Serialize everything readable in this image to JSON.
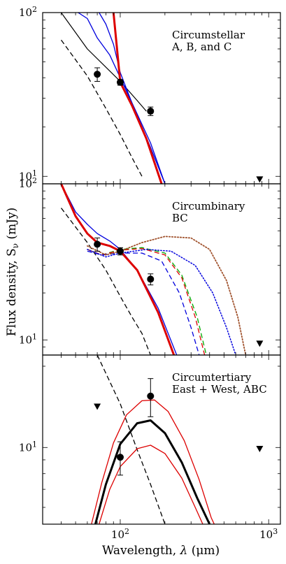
{
  "chart_data": [
    {
      "type": "line",
      "panel": "top",
      "annotation": [
        "Circumstellar",
        "A, B, and C"
      ],
      "x_scale": "log",
      "y_scale": "log",
      "xlim": [
        30,
        1200
      ],
      "ylim": [
        9,
        100
      ],
      "y_tick_labels": [
        {
          "value": 100,
          "base": "10",
          "exp": "2"
        },
        {
          "value": 10,
          "base": "10",
          "exp": "1"
        }
      ],
      "observations": [
        {
          "x": 70,
          "y": 42,
          "yerr": [
            4,
            4
          ]
        },
        {
          "x": 100,
          "y": 37.5,
          "yerr": [
            1.5,
            1.5
          ]
        },
        {
          "x": 160,
          "y": 25,
          "yerr": [
            1.5,
            1.5
          ]
        }
      ],
      "upper_limits": [
        {
          "x": 870,
          "y": 9.6
        }
      ],
      "series": [
        {
          "color": "#000000",
          "dash": "solid",
          "width": 1.2,
          "points": [
            [
              40,
              100
            ],
            [
              60,
              60
            ],
            [
              100,
              38
            ],
            [
              130,
              29
            ],
            [
              150,
              25
            ]
          ]
        },
        {
          "color": "#000000",
          "dash": "dashed",
          "width": 1.3,
          "points": [
            [
              40,
              68
            ],
            [
              60,
              41
            ],
            [
              80,
              26
            ],
            [
              100,
              18
            ],
            [
              120,
              13
            ],
            [
              140,
              10
            ]
          ]
        },
        {
          "color": "#0000dd",
          "dash": "solid",
          "width": 1.3,
          "points": [
            [
              52,
              100
            ],
            [
              60,
              92
            ],
            [
              70,
              70
            ],
            [
              85,
              55
            ],
            [
              100,
              40
            ],
            [
              130,
              24
            ],
            [
              160,
              16
            ],
            [
              200,
              9
            ]
          ]
        },
        {
          "color": "#0000dd",
          "dash": "solid",
          "width": 1.3,
          "points": [
            [
              72,
              100
            ],
            [
              80,
              85
            ],
            [
              90,
              64
            ],
            [
              100,
              43
            ],
            [
              120,
              28
            ],
            [
              160,
              15
            ],
            [
              200,
              9
            ]
          ]
        },
        {
          "color": "#dd0000",
          "dash": "solid",
          "width": 3,
          "points": [
            [
              90,
              100
            ],
            [
              100,
              37.5
            ],
            [
              120,
              27
            ],
            [
              150,
              17
            ],
            [
              190,
              9
            ]
          ]
        }
      ]
    },
    {
      "type": "line",
      "panel": "middle",
      "annotation": [
        "Circumbinary",
        "BC"
      ],
      "x_scale": "log",
      "y_scale": "log",
      "xlim": [
        30,
        1200
      ],
      "ylim": [
        8,
        100
      ],
      "y_tick_labels": [
        {
          "value": 100,
          "base": "10",
          "exp": "2"
        },
        {
          "value": 10,
          "base": "10",
          "exp": "1"
        }
      ],
      "y_axis_label": "Flux density, S_ν (mJy)",
      "observations": [
        {
          "x": 70,
          "y": 41,
          "yerr": [
            4,
            4
          ]
        },
        {
          "x": 100,
          "y": 37,
          "yerr": [
            2,
            2
          ]
        },
        {
          "x": 160,
          "y": 24.5,
          "yerr": [
            2,
            2
          ]
        }
      ],
      "upper_limits": [
        {
          "x": 870,
          "y": 9.5
        }
      ],
      "series": [
        {
          "color": "#000000",
          "dash": "dashed",
          "width": 1.3,
          "points": [
            [
              40,
              70
            ],
            [
              60,
              42
            ],
            [
              80,
              28
            ],
            [
              100,
              19
            ],
            [
              120,
              14
            ],
            [
              140,
              11
            ],
            [
              160,
              8
            ]
          ]
        },
        {
          "color": "#0000dd",
          "dash": "solid",
          "width": 1.3,
          "points": [
            [
              40,
              100
            ],
            [
              50,
              66
            ],
            [
              60,
              55
            ],
            [
              70,
              48
            ],
            [
              85,
              43
            ],
            [
              100,
              38
            ],
            [
              130,
              28
            ],
            [
              180,
              16
            ],
            [
              240,
              8
            ]
          ]
        },
        {
          "color": "#dd0000",
          "dash": "solid",
          "width": 3,
          "points": [
            [
              40,
              100
            ],
            [
              50,
              62
            ],
            [
              60,
              48
            ],
            [
              70,
              42
            ],
            [
              85,
              40
            ],
            [
              100,
              37
            ],
            [
              130,
              28
            ],
            [
              180,
              15
            ],
            [
              230,
              8
            ]
          ]
        },
        {
          "color": "#00aa00",
          "dash": "dashed",
          "width": 1.3,
          "points": [
            [
              60,
              38
            ],
            [
              75,
              35
            ],
            [
              100,
              38
            ],
            [
              140,
              39
            ],
            [
              200,
              36
            ],
            [
              260,
              26
            ],
            [
              330,
              14
            ],
            [
              380,
              8
            ]
          ]
        },
        {
          "color": "#dd0000",
          "dash": "dashed",
          "width": 1.3,
          "points": [
            [
              60,
              38
            ],
            [
              75,
              35
            ],
            [
              100,
              37.5
            ],
            [
              140,
              38.5
            ],
            [
              200,
              35
            ],
            [
              260,
              25
            ],
            [
              320,
              14
            ],
            [
              370,
              8
            ]
          ]
        },
        {
          "color": "#0000dd",
          "dash": "dashed",
          "width": 1.3,
          "points": [
            [
              60,
              37
            ],
            [
              75,
              35
            ],
            [
              100,
              36
            ],
            [
              140,
              36
            ],
            [
              190,
              32
            ],
            [
              250,
              20
            ],
            [
              300,
              12
            ],
            [
              340,
              8
            ]
          ]
        },
        {
          "color": "#a0522d",
          "dash": "dotted",
          "width": 1.8,
          "points": [
            [
              60,
              40
            ],
            [
              80,
              35
            ],
            [
              100,
              37
            ],
            [
              140,
              42
            ],
            [
              200,
              46
            ],
            [
              300,
              45
            ],
            [
              400,
              38
            ],
            [
              520,
              24
            ],
            [
              620,
              14
            ],
            [
              700,
              8
            ]
          ]
        },
        {
          "color": "#0000dd",
          "dash": "dotted",
          "width": 1.5,
          "points": [
            [
              60,
              38
            ],
            [
              80,
              34
            ],
            [
              100,
              36
            ],
            [
              150,
              38
            ],
            [
              220,
              37
            ],
            [
              320,
              30
            ],
            [
              420,
              20
            ],
            [
              520,
              12
            ],
            [
              600,
              8
            ]
          ]
        }
      ]
    },
    {
      "type": "line",
      "panel": "bottom",
      "annotation": [
        "Circumtertiary",
        "East + West, ABC"
      ],
      "x_scale": "log",
      "y_scale": "log",
      "xlim": [
        30,
        1200
      ],
      "ylim": [
        5.2,
        22
      ],
      "x_tick_labels": [
        {
          "value": 100,
          "base": "10",
          "exp": "2"
        },
        {
          "value": 1000,
          "base": "10",
          "exp": "3"
        }
      ],
      "y_tick_labels": [
        {
          "value": 10,
          "base": "10",
          "exp": "1"
        }
      ],
      "x_axis_label": "Wavelength, λ (μm)",
      "observations": [
        {
          "x": 100,
          "y": 9.2,
          "yerr": [
            1.3,
            1.3
          ]
        },
        {
          "x": 160,
          "y": 15.5,
          "yerr": [
            2.5,
            2.5
          ]
        }
      ],
      "upper_limits": [
        {
          "x": 70,
          "y": 14.2
        },
        {
          "x": 870,
          "y": 9.9
        }
      ],
      "series": [
        {
          "color": "#000000",
          "dash": "dashed",
          "width": 1.3,
          "points": [
            [
              70,
              22
            ],
            [
              100,
              14.5
            ],
            [
              130,
              9.8
            ],
            [
              160,
              7.3
            ],
            [
              200,
              5.2
            ]
          ]
        },
        {
          "color": "#000000",
          "dash": "solid",
          "width": 3,
          "points": [
            [
              68,
              5.2
            ],
            [
              80,
              7.3
            ],
            [
              100,
              10.3
            ],
            [
              130,
              12.3
            ],
            [
              160,
              12.6
            ],
            [
              200,
              11.3
            ],
            [
              260,
              8.8
            ],
            [
              330,
              6.5
            ],
            [
              400,
              5.2
            ]
          ]
        },
        {
          "color": "#dd0000",
          "dash": "solid",
          "width": 1.3,
          "points": [
            [
              64,
              5.2
            ],
            [
              75,
              7.4
            ],
            [
              90,
              10.4
            ],
            [
              110,
              13.2
            ],
            [
              140,
              14.9
            ],
            [
              170,
              15.0
            ],
            [
              210,
              13.6
            ],
            [
              270,
              10.6
            ],
            [
              340,
              7.6
            ],
            [
              410,
              5.5
            ],
            [
              430,
              5.2
            ]
          ]
        },
        {
          "color": "#dd0000",
          "dash": "solid",
          "width": 1.3,
          "points": [
            [
              72,
              5.2
            ],
            [
              85,
              7.0
            ],
            [
              100,
              8.5
            ],
            [
              130,
              9.9
            ],
            [
              160,
              10.2
            ],
            [
              200,
              9.5
            ],
            [
              260,
              7.7
            ],
            [
              320,
              6.0
            ],
            [
              360,
              5.2
            ]
          ]
        }
      ]
    }
  ],
  "labels": {
    "y_axis": "Flux density, S",
    "y_axis_sub": "ν",
    "y_axis_unit": " (mJy)",
    "x_axis_prefix": "Wavelength, ",
    "x_axis_lambda": "λ",
    "x_axis_unit": " (μm)"
  }
}
